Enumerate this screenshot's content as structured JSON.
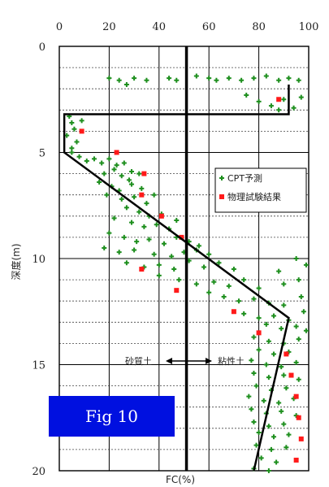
{
  "fig_label": "Fig 10",
  "colors": {
    "cpt": "#1e8f1e",
    "lab": "#ff1a1a",
    "line": "#000000",
    "fig_bg": "#0010e0"
  },
  "chart_data": {
    "type": "scatter",
    "xlabel": "FC(%)",
    "ylabel": "深度(m)",
    "xlim": [
      0,
      100
    ],
    "ylim": [
      0,
      20
    ],
    "y_inverted": true,
    "x_ticks": [
      0,
      20,
      40,
      60,
      80,
      100
    ],
    "y_ticks": [
      0,
      5,
      10,
      15,
      20
    ],
    "grid": true,
    "legend_position": "right-middle",
    "series": [
      {
        "name": "CPT予測",
        "marker": "plus",
        "color": "#1e8f1e",
        "points": [
          [
            20,
            1.5
          ],
          [
            24,
            1.6
          ],
          [
            27,
            1.8
          ],
          [
            30,
            1.5
          ],
          [
            35,
            1.6
          ],
          [
            44,
            1.5
          ],
          [
            47,
            1.6
          ],
          [
            55,
            1.4
          ],
          [
            60,
            1.5
          ],
          [
            63,
            1.6
          ],
          [
            68,
            1.5
          ],
          [
            73,
            1.6
          ],
          [
            78,
            1.5
          ],
          [
            83,
            1.4
          ],
          [
            88,
            1.6
          ],
          [
            92,
            1.5
          ],
          [
            96,
            1.6
          ],
          [
            75,
            2.3
          ],
          [
            80,
            2.6
          ],
          [
            85,
            2.8
          ],
          [
            90,
            2.5
          ],
          [
            94,
            2.9
          ],
          [
            88,
            3.0
          ],
          [
            97,
            2.4
          ],
          [
            4,
            3.3
          ],
          [
            5,
            3.6
          ],
          [
            6,
            3.9
          ],
          [
            3,
            4.2
          ],
          [
            7,
            4.5
          ],
          [
            5,
            4.8
          ],
          [
            9,
            3.5
          ],
          [
            5,
            5.0
          ],
          [
            8,
            5.2
          ],
          [
            11,
            5.4
          ],
          [
            14,
            5.3
          ],
          [
            17,
            5.5
          ],
          [
            20,
            5.3
          ],
          [
            23,
            5.6
          ],
          [
            26,
            5.5
          ],
          [
            22,
            5.8
          ],
          [
            18,
            6.0
          ],
          [
            25,
            6.1
          ],
          [
            29,
            5.9
          ],
          [
            32,
            6.0
          ],
          [
            28,
            6.3
          ],
          [
            16,
            6.4
          ],
          [
            21,
            6.6
          ],
          [
            24,
            6.8
          ],
          [
            29,
            6.5
          ],
          [
            33,
            6.7
          ],
          [
            19,
            7.0
          ],
          [
            25,
            7.2
          ],
          [
            30,
            7.1
          ],
          [
            35,
            7.4
          ],
          [
            38,
            7.0
          ],
          [
            27,
            7.6
          ],
          [
            32,
            7.8
          ],
          [
            36,
            8.0
          ],
          [
            41,
            7.9
          ],
          [
            22,
            8.1
          ],
          [
            29,
            8.3
          ],
          [
            34,
            8.5
          ],
          [
            39,
            8.4
          ],
          [
            44,
            8.6
          ],
          [
            47,
            8.2
          ],
          [
            20,
            8.8
          ],
          [
            26,
            9.0
          ],
          [
            31,
            9.2
          ],
          [
            36,
            9.1
          ],
          [
            42,
            9.3
          ],
          [
            47,
            9.0
          ],
          [
            52,
            9.2
          ],
          [
            56,
            9.4
          ],
          [
            18,
            9.5
          ],
          [
            24,
            9.7
          ],
          [
            30,
            9.6
          ],
          [
            38,
            9.8
          ],
          [
            45,
            9.9
          ],
          [
            50,
            9.7
          ],
          [
            55,
            9.6
          ],
          [
            60,
            9.8
          ],
          [
            27,
            10.2
          ],
          [
            34,
            10.4
          ],
          [
            40,
            10.3
          ],
          [
            46,
            10.5
          ],
          [
            52,
            10.1
          ],
          [
            58,
            10.4
          ],
          [
            64,
            10.2
          ],
          [
            70,
            10.5
          ],
          [
            95,
            10.0
          ],
          [
            99,
            10.3
          ],
          [
            88,
            10.6
          ],
          [
            40,
            10.8
          ],
          [
            48,
            11.0
          ],
          [
            55,
            11.2
          ],
          [
            62,
            11.1
          ],
          [
            68,
            11.3
          ],
          [
            74,
            11.0
          ],
          [
            80,
            11.4
          ],
          [
            90,
            11.2
          ],
          [
            96,
            11.0
          ],
          [
            60,
            11.6
          ],
          [
            66,
            11.8
          ],
          [
            72,
            12.0
          ],
          [
            78,
            11.9
          ],
          [
            84,
            12.1
          ],
          [
            90,
            12.2
          ],
          [
            97,
            11.8
          ],
          [
            74,
            12.6
          ],
          [
            80,
            12.8
          ],
          [
            86,
            12.7
          ],
          [
            92,
            12.9
          ],
          [
            98,
            12.5
          ],
          [
            83,
            13.1
          ],
          [
            89,
            13.3
          ],
          [
            95,
            13.2
          ],
          [
            99,
            13.4
          ],
          [
            78,
            13.7
          ],
          [
            84,
            13.9
          ],
          [
            90,
            14.0
          ],
          [
            96,
            13.8
          ],
          [
            80,
            14.3
          ],
          [
            86,
            14.5
          ],
          [
            92,
            14.4
          ],
          [
            77,
            14.8
          ],
          [
            83,
            15.0
          ],
          [
            89,
            15.1
          ],
          [
            95,
            14.9
          ],
          [
            78,
            15.4
          ],
          [
            84,
            15.6
          ],
          [
            90,
            15.5
          ],
          [
            96,
            15.7
          ],
          [
            79,
            16.0
          ],
          [
            85,
            16.2
          ],
          [
            91,
            16.1
          ],
          [
            76,
            16.5
          ],
          [
            82,
            16.7
          ],
          [
            88,
            16.8
          ],
          [
            94,
            16.6
          ],
          [
            77,
            17.1
          ],
          [
            83,
            17.3
          ],
          [
            89,
            17.2
          ],
          [
            95,
            17.4
          ],
          [
            78,
            17.7
          ],
          [
            84,
            17.9
          ],
          [
            90,
            17.8
          ],
          [
            80,
            18.2
          ],
          [
            86,
            18.4
          ],
          [
            92,
            18.3
          ],
          [
            79,
            18.8
          ],
          [
            85,
            19.0
          ],
          [
            91,
            18.9
          ],
          [
            81,
            19.4
          ],
          [
            87,
            19.6
          ],
          [
            78,
            19.9
          ],
          [
            84,
            20.0
          ]
        ]
      },
      {
        "name": "物理試験結果",
        "marker": "square",
        "color": "#ff1a1a",
        "points": [
          [
            88,
            2.5
          ],
          [
            9,
            4.0
          ],
          [
            23,
            5.0
          ],
          [
            34,
            6.0
          ],
          [
            33,
            7.0
          ],
          [
            41,
            8.0
          ],
          [
            49,
            9.0
          ],
          [
            33,
            10.5
          ],
          [
            47,
            11.5
          ],
          [
            70,
            12.5
          ],
          [
            80,
            13.5
          ],
          [
            91,
            14.5
          ],
          [
            93,
            15.5
          ],
          [
            95,
            16.5
          ],
          [
            96,
            17.5
          ],
          [
            97,
            18.5
          ],
          [
            95,
            19.5
          ]
        ]
      }
    ],
    "boundary_line": [
      [
        92,
        1.8
      ],
      [
        92,
        3.2
      ],
      [
        2,
        3.2
      ],
      [
        2,
        5.0
      ],
      [
        92,
        12.8
      ],
      [
        78,
        20.0
      ]
    ],
    "vertical_line_x": 51,
    "annotation": {
      "left": "砂質土",
      "right": "粘性土",
      "y": 14.9
    }
  }
}
